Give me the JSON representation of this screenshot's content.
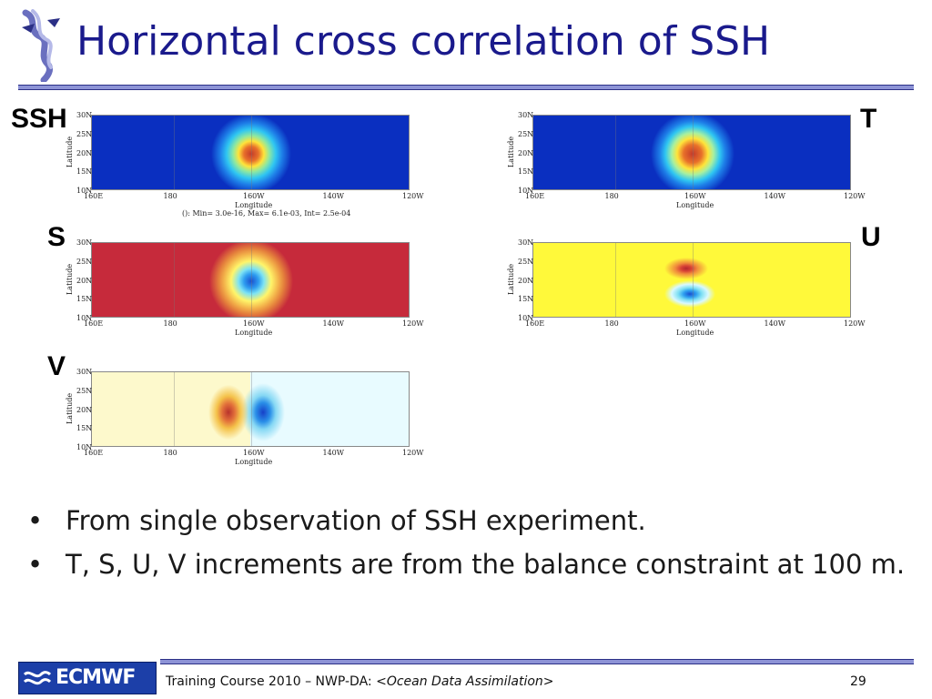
{
  "slide": {
    "title": "Horizontal cross correlation of SSH",
    "page_number": "29",
    "footer_prefix": "Training Course 2010 – NWP-DA: ",
    "footer_italic": "<Ocean Data Assimilation>",
    "logo_text": "ECMWF"
  },
  "panels": [
    {
      "label": "SSH",
      "pattern": "positive-blob",
      "annotation": "(): Min= 3.0e-16, Max= 6.1e-03, Int= 2.5e-04"
    },
    {
      "label": "T",
      "pattern": "positive-blob-smooth",
      "annotation": ""
    },
    {
      "label": "S",
      "pattern": "negative-blob",
      "annotation": ""
    },
    {
      "label": "U",
      "pattern": "dipole-ns",
      "annotation": ""
    },
    {
      "label": "V",
      "pattern": "dipole-ew",
      "annotation": ""
    }
  ],
  "axes": {
    "xlabel": "Longitude",
    "ylabel": "Latitude",
    "xticks": [
      "160E",
      "180",
      "160W",
      "140W",
      "120W"
    ],
    "yticks": [
      "30N",
      "25N",
      "20N",
      "15N",
      "10N"
    ]
  },
  "bullets": [
    "From single observation of SSH experiment.",
    "T, S, U, V increments are from the balance constraint at 100 m."
  ],
  "colors": {
    "title": "#1a1a8c",
    "rule": "#8d93d6",
    "low": "#0a2fc0",
    "high": "#c62a3b",
    "neutral_warm": "#fff93a",
    "neutral_light": "#fdf9cc"
  }
}
